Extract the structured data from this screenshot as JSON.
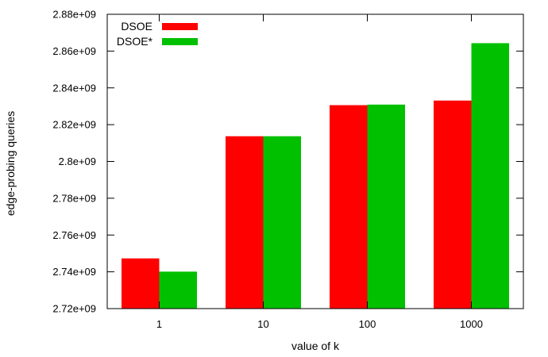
{
  "chart_data": {
    "type": "bar",
    "title": "",
    "xlabel": "value of k",
    "ylabel": "edge-probing queries",
    "categories": [
      "1",
      "10",
      "100",
      "1000"
    ],
    "ylim": [
      2720000000.0,
      2880000000.0
    ],
    "yticks": [
      2720000000.0,
      2740000000.0,
      2760000000.0,
      2780000000.0,
      2800000000.0,
      2820000000.0,
      2840000000.0,
      2860000000.0,
      2880000000.0
    ],
    "ytick_labels": [
      "2.72e+09",
      "2.74e+09",
      "2.76e+09",
      "2.78e+09",
      "2.8e+09",
      "2.82e+09",
      "2.84e+09",
      "2.86e+09",
      "2.88e+09"
    ],
    "series": [
      {
        "name": "DSOE",
        "color": "#ff0000",
        "values": [
          2747300000.0,
          2813700000.0,
          2830600000.0,
          2833100000.0
        ]
      },
      {
        "name": "DSOE*",
        "color": "#00c000",
        "values": [
          2740100000.0,
          2813700000.0,
          2830900000.0,
          2864300000.0
        ]
      }
    ],
    "legend": {
      "position": "top-left"
    },
    "grid": false
  }
}
